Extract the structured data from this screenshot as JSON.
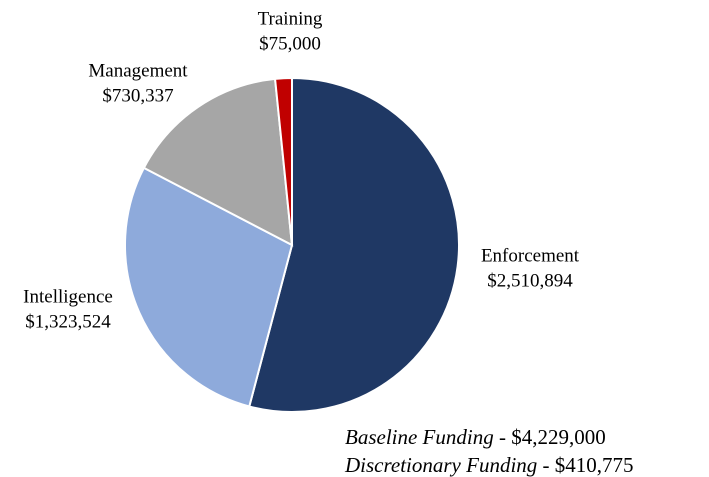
{
  "chart_data": {
    "type": "pie",
    "categories": [
      "Enforcement",
      "Intelligence",
      "Management",
      "Training"
    ],
    "values": [
      2510894,
      1323524,
      730337,
      75000
    ],
    "value_labels": [
      "$2,510,894",
      "$1,323,524",
      "$730,337",
      "$75,000"
    ],
    "colors": [
      "#1f3864",
      "#8eaadb",
      "#a6a6a6",
      "#c00000"
    ],
    "annotations": [
      [
        "Baseline Funding",
        " - $4,229,000"
      ],
      [
        "Discretionary Funding",
        " - $410,775"
      ]
    ]
  }
}
